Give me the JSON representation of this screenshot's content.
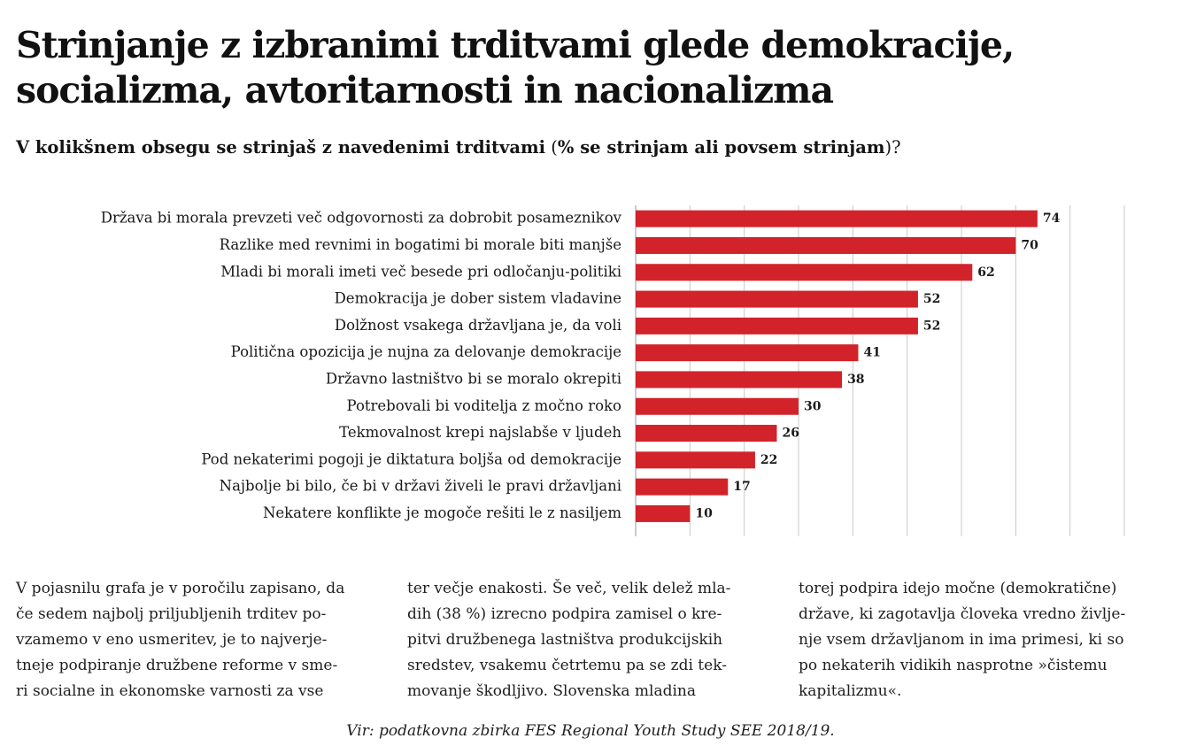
{
  "title": "Strinjanje z izbranimi trditvami glede demokracije, socializma, avtoritarnosti in nacionalizma",
  "subtitle": {
    "question": "V kolikšnem obsegu se strinjaš z navedenimi trditvami",
    "note_open": " (",
    "note": "% se strinjam ali povsem strinjam",
    "note_close": ")?"
  },
  "chart_data": {
    "type": "bar",
    "orientation": "horizontal",
    "title": "Strinjanje z izbranimi trditvami glede demokracije, socializma, avtoritarnosti in nacionalizma",
    "xlabel": "",
    "ylabel": "",
    "xlim": [
      0,
      90
    ],
    "grid": true,
    "bar_color": "#d2232a",
    "categories": [
      "Država bi morala prevzeti več odgovornosti za dobrobit posameznikov",
      "Razlike med revnimi in bogatimi bi morale biti manjše",
      "Mladi bi morali imeti več besede pri odločanju-politiki",
      "Demokracija je dober sistem vladavine",
      "Dolžnost vsakega državljana je, da voli",
      "Politična opozicija je nujna za delovanje demokracije",
      "Državno lastništvo bi se moralo okrepiti",
      "Potrebovali bi voditelja z močno roko",
      "Tekmovalnost krepi najslabše v ljudeh",
      "Pod nekaterimi pogoji je diktatura boljša od demokracije",
      "Najbolje bi bilo, če bi v državi živeli le pravi državljani",
      "Nekatere konflikte je mogoče rešiti le z nasiljem"
    ],
    "values": [
      74,
      70,
      62,
      52,
      52,
      41,
      38,
      30,
      26,
      22,
      17,
      10
    ]
  },
  "body_text": {
    "col1": "V pojasnilu grafa je v poročilu zapisano, da\nče sedem najbolj priljubljenih trditev po-\nvzamemo v eno usmeritev, je to najverje-\ntneje podpiranje družbene reforme v sme-\nri socialne in ekonomske varnosti za vse",
    "col2": "ter večje enakosti. Še več, velik delež mla-\ndih (38 %) izrecno podpira zamisel o kre-\npitvi družbenega lastništva produkcijskih\nsredstev, vsakemu četrtemu pa se zdi tek-\nmovanje škodljivo. Slovenska mladina",
    "col3": "torej podpira idejo močne (demokratične)\ndržave, ki zagotavlja človeka vredno življe-\nnje vsem državljanom in ima primesi, ki so\npo nekaterih vidikih nasprotne »čistemu\nkapitalizmu«."
  },
  "source": "Vir: podatkovna zbirka FES Regional Youth Study SEE 2018/19."
}
